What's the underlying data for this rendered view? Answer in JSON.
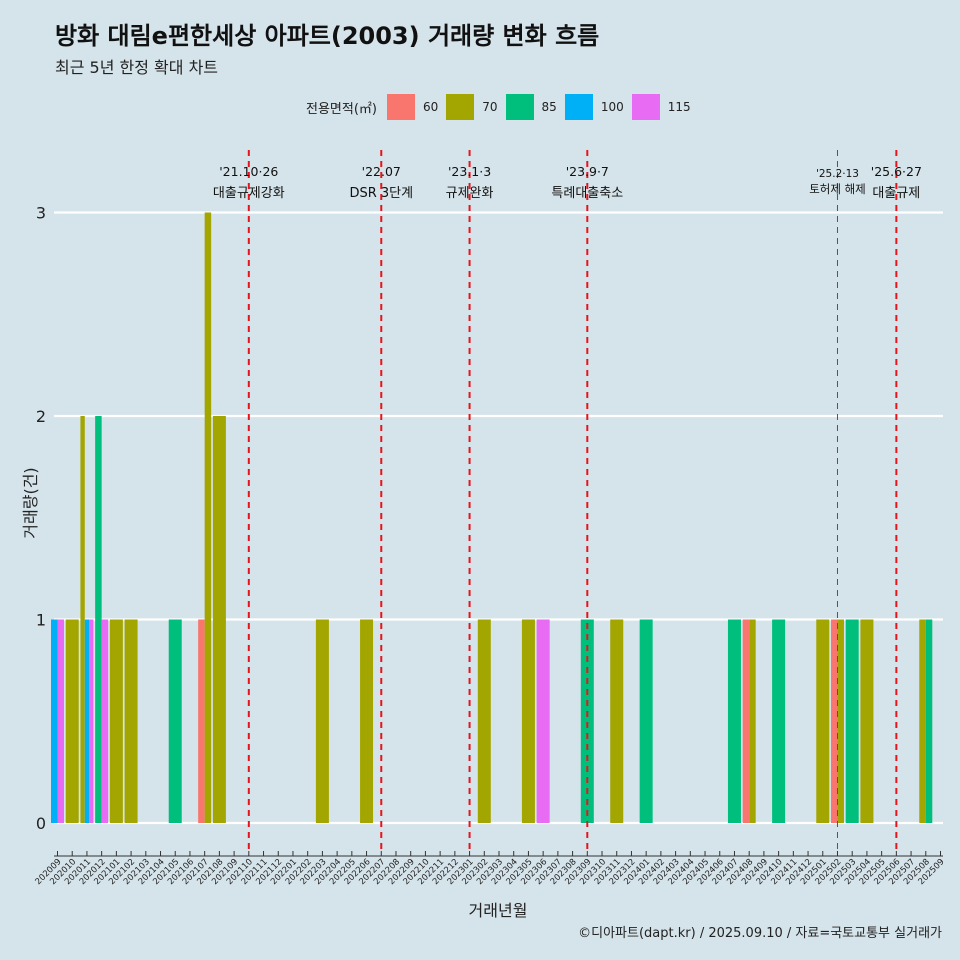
{
  "page": {
    "title": "방화 대림e편한세상 아파트(2003) 거래량 변화 흐름",
    "subtitle": "최근 5년 한정 확대 차트",
    "caption": "©디아파트(dapt.kr) / 2025.09.10 / 자료=국토교통부 실거래가"
  },
  "legend": {
    "title": "전용면적(㎡)",
    "items": [
      {
        "label": "60",
        "color": "#f8766d"
      },
      {
        "label": "70",
        "color": "#a3a500"
      },
      {
        "label": "85",
        "color": "#00bf7d"
      },
      {
        "label": "100",
        "color": "#00b0f6"
      },
      {
        "label": "115",
        "color": "#e76bf3"
      }
    ]
  },
  "chart_data": {
    "type": "bar",
    "xlabel": "거래년월",
    "ylabel": "거래량(건)",
    "ylim": [
      0,
      3
    ],
    "y_ticks": [
      0,
      1,
      2,
      3
    ],
    "categories": [
      "202009",
      "202010",
      "202011",
      "202012",
      "202101",
      "202102",
      "202103",
      "202104",
      "202105",
      "202106",
      "202107",
      "202108",
      "202109",
      "202110",
      "202111",
      "202112",
      "202201",
      "202202",
      "202203",
      "202204",
      "202205",
      "202206",
      "202207",
      "202208",
      "202209",
      "202210",
      "202211",
      "202212",
      "202301",
      "202302",
      "202303",
      "202304",
      "202305",
      "202306",
      "202307",
      "202308",
      "202309",
      "202310",
      "202311",
      "202312",
      "202401",
      "202402",
      "202403",
      "202404",
      "202405",
      "202406",
      "202407",
      "202408",
      "202409",
      "202410",
      "202411",
      "202412",
      "202501",
      "202502",
      "202503",
      "202504",
      "202505",
      "202506",
      "202507",
      "202508",
      "202509"
    ],
    "series": [
      {
        "name": "60",
        "color": "#f8766d",
        "points": [
          {
            "x": "202107",
            "y": 1
          },
          {
            "x": "202408",
            "y": 1
          },
          {
            "x": "202502",
            "y": 1
          }
        ]
      },
      {
        "name": "70",
        "color": "#a3a500",
        "points": [
          {
            "x": "202010",
            "y": 1
          },
          {
            "x": "202011",
            "y": 2
          },
          {
            "x": "202101",
            "y": 1
          },
          {
            "x": "202102",
            "y": 1
          },
          {
            "x": "202107",
            "y": 3
          },
          {
            "x": "202108",
            "y": 2
          },
          {
            "x": "202203",
            "y": 1
          },
          {
            "x": "202206",
            "y": 1
          },
          {
            "x": "202302",
            "y": 1
          },
          {
            "x": "202305",
            "y": 1
          },
          {
            "x": "202311",
            "y": 1
          },
          {
            "x": "202408",
            "y": 1
          },
          {
            "x": "202501",
            "y": 1
          },
          {
            "x": "202502",
            "y": 1
          },
          {
            "x": "202504",
            "y": 1
          },
          {
            "x": "202508",
            "y": 1
          }
        ]
      },
      {
        "name": "85",
        "color": "#00bf7d",
        "points": [
          {
            "x": "202012",
            "y": 2
          },
          {
            "x": "202105",
            "y": 1
          },
          {
            "x": "202309",
            "y": 1
          },
          {
            "x": "202401",
            "y": 1
          },
          {
            "x": "202407",
            "y": 1
          },
          {
            "x": "202410",
            "y": 1
          },
          {
            "x": "202503",
            "y": 1
          },
          {
            "x": "202508",
            "y": 1
          }
        ]
      },
      {
        "name": "100",
        "color": "#00b0f6",
        "points": [
          {
            "x": "202009",
            "y": 1
          },
          {
            "x": "202011",
            "y": 1
          }
        ]
      },
      {
        "name": "115",
        "color": "#e76bf3",
        "points": [
          {
            "x": "202009",
            "y": 1
          },
          {
            "x": "202011",
            "y": 1
          },
          {
            "x": "202012",
            "y": 1
          },
          {
            "x": "202306",
            "y": 1
          }
        ]
      }
    ],
    "annotations": [
      {
        "x": "202110",
        "date": "'21.10·26",
        "text": "대출규제강화",
        "style": "bold"
      },
      {
        "x": "202207",
        "date": "'22.07",
        "text": "DSR 3단계",
        "style": "bold"
      },
      {
        "x": "202301",
        "date": "'23.1·3",
        "text": "규제완화",
        "style": "bold"
      },
      {
        "x": "202309",
        "date": "'23.9·7",
        "text": "특례대출축소",
        "style": "bold"
      },
      {
        "x": "202502",
        "date": "'25.2·13",
        "text": "토허제 해제",
        "style": "thin"
      },
      {
        "x": "202506",
        "date": "'25.6·27",
        "text": "대출규제",
        "style": "bold"
      }
    ]
  }
}
